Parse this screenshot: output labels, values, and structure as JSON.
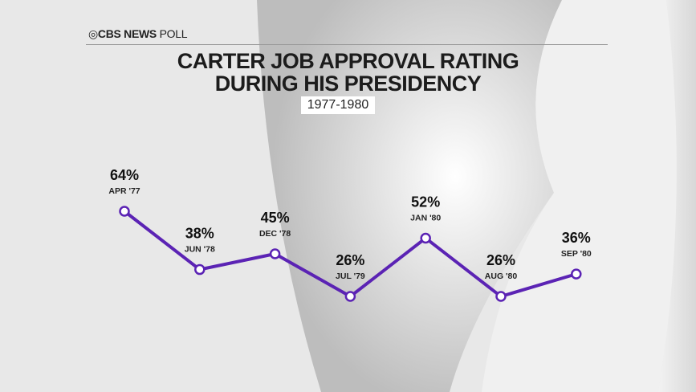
{
  "header": {
    "brand_bold": "CBS NEWS",
    "brand_light": "POLL",
    "title_line1": "CARTER JOB APPROVAL RATING",
    "title_line2": "DURING HIS PRESIDENCY",
    "subtitle": "1977-1980"
  },
  "colors": {
    "line": "#5b23b4",
    "background": "#e6e6e6"
  },
  "chart_data": {
    "type": "line",
    "title": "CARTER JOB APPROVAL RATING DURING HIS PRESIDENCY",
    "subtitle": "1977-1980",
    "categories": [
      "APR '77",
      "JUN '78",
      "DEC '78",
      "JUL '79",
      "JAN '80",
      "AUG '80",
      "SEP '80"
    ],
    "values": [
      64,
      38,
      45,
      26,
      52,
      26,
      36
    ],
    "labels": [
      "64%",
      "38%",
      "45%",
      "26%",
      "52%",
      "26%",
      "36%"
    ],
    "unit": "%",
    "grid": false,
    "axes_visible": false
  }
}
